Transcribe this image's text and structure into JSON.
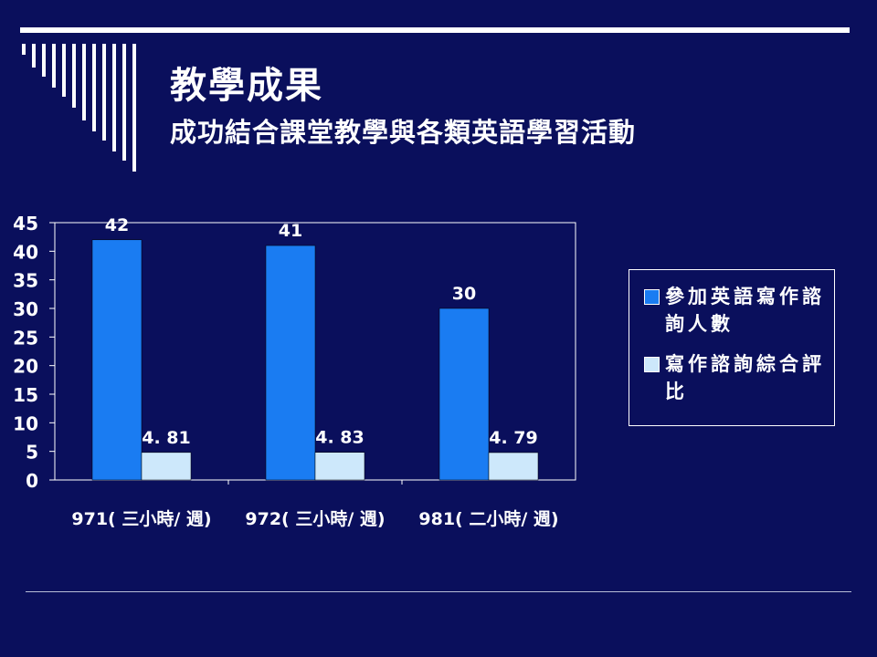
{
  "slide": {
    "title": "教學成果",
    "subtitle": "成功結合課堂教學與各類英語學習活動"
  },
  "chart_data": {
    "type": "bar",
    "categories": [
      "971( 三小時/ 週)",
      "972( 三小時/ 週)",
      "981( 二小時/ 週)"
    ],
    "series": [
      {
        "name": "參加英語寫作諮詢人數",
        "values": [
          42,
          41,
          30
        ],
        "labels": [
          "42",
          "41",
          "30"
        ],
        "color": "#1a7cf2"
      },
      {
        "name": "寫作諮詢綜合評比",
        "values": [
          4.81,
          4.83,
          4.79
        ],
        "labels": [
          "4. 81",
          "4. 83",
          "4. 79"
        ],
        "color": "#cde8fb"
      }
    ],
    "yticks": [
      0,
      5,
      10,
      15,
      20,
      25,
      30,
      35,
      40,
      45
    ],
    "ylim": [
      0,
      45
    ],
    "grid": false,
    "legend": "right",
    "title": "",
    "xlabel": "",
    "ylabel": ""
  },
  "colors": {
    "background": "#0a0f5c",
    "foreground": "#ffffff"
  }
}
